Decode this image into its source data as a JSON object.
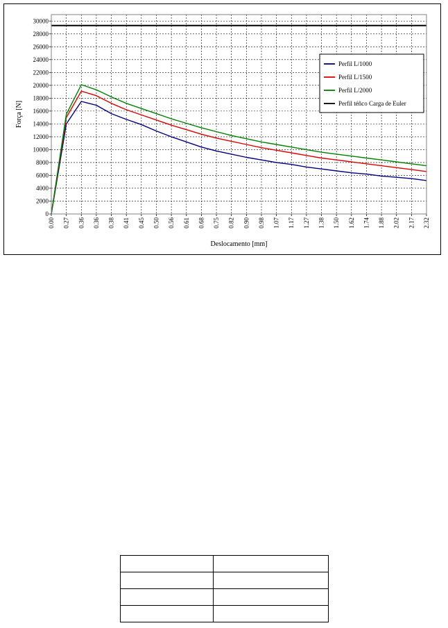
{
  "chart_data": {
    "type": "line",
    "title": "",
    "xlabel": "Deslocamento [mm]",
    "ylabel": "Força [N]",
    "ylim": [
      0,
      31000
    ],
    "yticks": [
      0,
      2000,
      4000,
      6000,
      8000,
      10000,
      12000,
      14000,
      16000,
      18000,
      20000,
      22000,
      24000,
      26000,
      28000,
      30000
    ],
    "x_tick_labels": [
      "0.00",
      "0.27",
      "0.36",
      "0.36",
      "0.38",
      "0.41",
      "0.45",
      "0.50",
      "0.56",
      "0.61",
      "0.68",
      "0.75",
      "0.82",
      "0.90",
      "0.98",
      "1.07",
      "1.17",
      "1.27",
      "1.38",
      "1.50",
      "1.62",
      "1.74",
      "1.88",
      "2.02",
      "2.17",
      "2.32"
    ],
    "x_axis_note": "categorical (non-uniform) displacement axis; series values sampled at the tick labels",
    "grid": true,
    "legend_position": "right",
    "series": [
      {
        "name": "Perfil L/1000",
        "color": "#000080",
        "values": [
          0,
          14000,
          17500,
          16900,
          15600,
          14700,
          13900,
          12900,
          12000,
          11200,
          10400,
          9800,
          9300,
          8800,
          8400,
          8000,
          7700,
          7300,
          7000,
          6700,
          6400,
          6200,
          5900,
          5700,
          5500,
          5200
        ]
      },
      {
        "name": "Perfil L/1500",
        "color": "#e00000",
        "values": [
          0,
          15000,
          19100,
          18400,
          17200,
          16200,
          15400,
          14600,
          13800,
          13100,
          12400,
          11800,
          11300,
          10800,
          10300,
          9900,
          9500,
          9100,
          8700,
          8400,
          8100,
          7800,
          7500,
          7200,
          6900,
          6600
        ]
      },
      {
        "name": "Perfil L/2000",
        "color": "#008000",
        "values": [
          0,
          15500,
          20100,
          19300,
          18200,
          17200,
          16400,
          15600,
          14800,
          14100,
          13400,
          12800,
          12200,
          11700,
          11200,
          10800,
          10400,
          10000,
          9600,
          9300,
          9000,
          8700,
          8400,
          8100,
          7800,
          7500
        ]
      },
      {
        "name": "Perfil téñco Carga de Euler",
        "color": "#000000",
        "values": [
          29300,
          29300,
          29300,
          29300,
          29300,
          29300,
          29300,
          29300,
          29300,
          29300,
          29300,
          29300,
          29300,
          29300,
          29300,
          29300,
          29300,
          29300,
          29300,
          29300,
          29300,
          29300,
          29300,
          29300,
          29300,
          29300
        ]
      }
    ]
  },
  "table": {
    "rows": [
      [
        "",
        ""
      ],
      [
        "",
        ""
      ],
      [
        "",
        ""
      ],
      [
        "",
        ""
      ]
    ]
  }
}
